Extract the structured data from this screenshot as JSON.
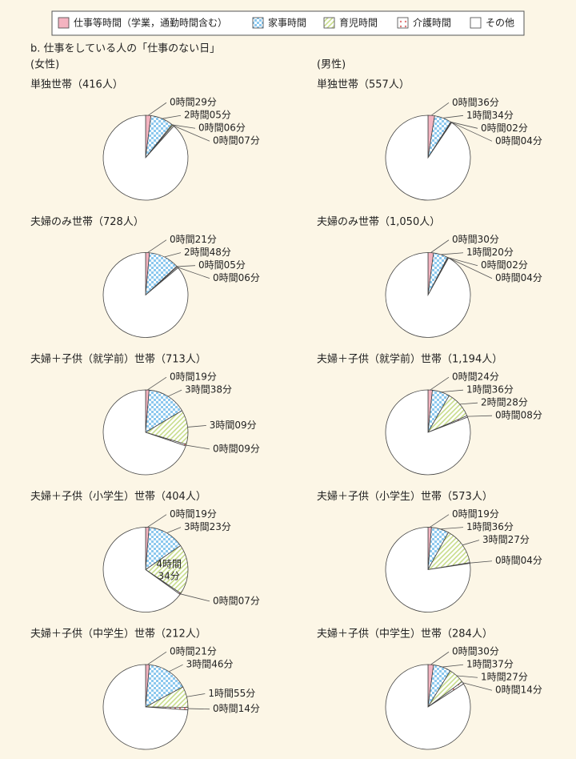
{
  "legend": {
    "labels": [
      "仕事等時間（学業，通勤時間含む）",
      "家事時間",
      "育児時間",
      "介護時間",
      "その他"
    ],
    "colors": [
      "#f4b3c0",
      "#8cc8ee",
      "#c9dd8c",
      "#e07a7a",
      "#ffffff"
    ]
  },
  "subtitle": "b. 仕事をしている人の「仕事のない日」",
  "column_labels": [
    "(女性)",
    "(男性)"
  ],
  "chart_data": [
    {
      "type": "pie",
      "title": "単独世帯（416人）",
      "values": [
        29,
        125,
        6,
        7,
        1273
      ],
      "value_labels": [
        "0時間29分",
        "2時間05分",
        "0時間06分",
        "0時間07分",
        null
      ]
    },
    {
      "type": "pie",
      "title": "単独世帯（557人）",
      "values": [
        36,
        94,
        2,
        4,
        1304
      ],
      "value_labels": [
        "0時間36分",
        "1時間34分",
        "0時間02分",
        "0時間04分",
        null
      ]
    },
    {
      "type": "pie",
      "title": "夫婦のみ世帯（728人）",
      "values": [
        21,
        168,
        5,
        6,
        1240
      ],
      "value_labels": [
        "0時間21分",
        "2時間48分",
        "0時間05分",
        "0時間06分",
        null
      ]
    },
    {
      "type": "pie",
      "title": "夫婦のみ世帯（1,050人）",
      "values": [
        30,
        80,
        2,
        4,
        1324
      ],
      "value_labels": [
        "0時間30分",
        "1時間20分",
        "0時間02分",
        "0時間04分",
        null
      ]
    },
    {
      "type": "pie",
      "title": "夫婦＋子供（就学前）世帯（713人）",
      "values": [
        19,
        218,
        189,
        9,
        1005
      ],
      "value_labels": [
        "0時間19分",
        "3時間38分",
        "3時間09分",
        "0時間09分",
        null
      ]
    },
    {
      "type": "pie",
      "title": "夫婦＋子供（就学前）世帯（1,194人）",
      "values": [
        24,
        96,
        148,
        8,
        1164
      ],
      "value_labels": [
        "0時間24分",
        "1時間36分",
        "2時間28分",
        "0時間08分",
        null
      ]
    },
    {
      "type": "pie",
      "title": "夫婦＋子供（小学生）世帯（404人）",
      "values": [
        19,
        203,
        274,
        7,
        937
      ],
      "value_labels": [
        "0時間19分",
        "3時間23分",
        "4時間34分",
        "0時間07分",
        null
      ]
    },
    {
      "type": "pie",
      "title": "夫婦＋子供（小学生）世帯（573人）",
      "values": [
        19,
        96,
        207,
        4,
        1114
      ],
      "value_labels": [
        "0時間19分",
        "1時間36分",
        "3時間27分",
        "0時間04分",
        null
      ]
    },
    {
      "type": "pie",
      "title": "夫婦＋子供（中学生）世帯（212人）",
      "values": [
        21,
        226,
        115,
        14,
        1064
      ],
      "value_labels": [
        "0時間21分",
        "3時間46分",
        "1時間55分",
        "0時間14分",
        null
      ]
    },
    {
      "type": "pie",
      "title": "夫婦＋子供（中学生）世帯（284人）",
      "values": [
        30,
        97,
        87,
        14,
        1212
      ],
      "value_labels": [
        "0時間30分",
        "1時間37分",
        "1時間27分",
        "0時間14分",
        null
      ]
    }
  ]
}
